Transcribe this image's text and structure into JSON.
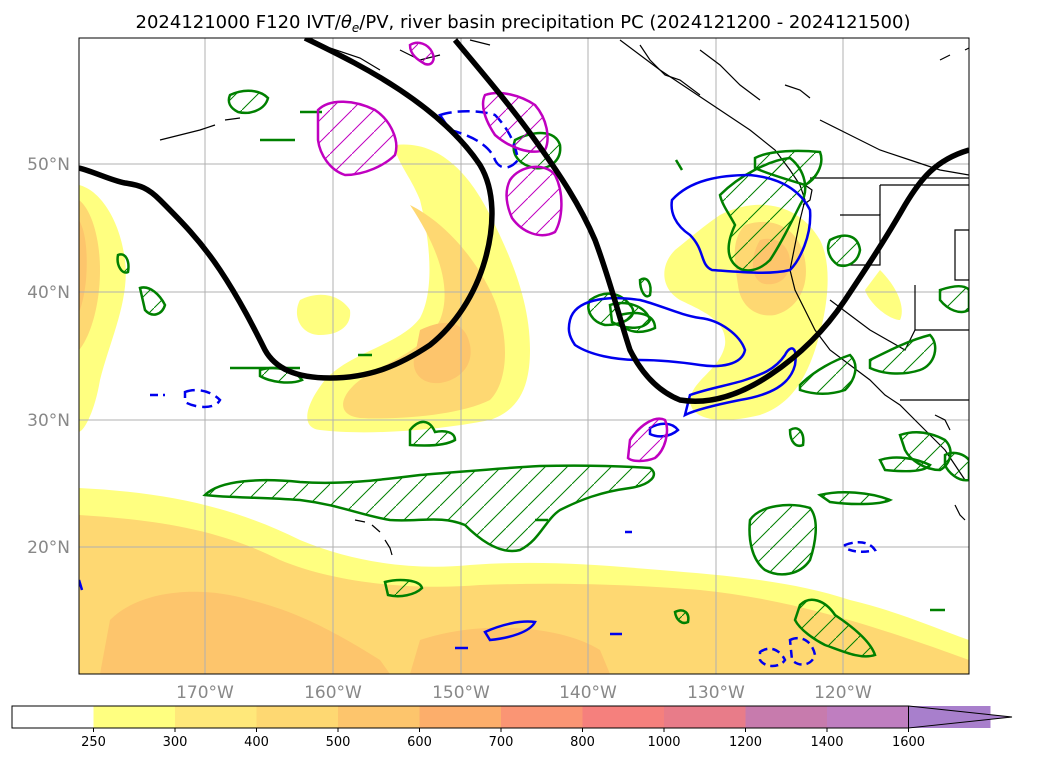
{
  "title": {
    "main": "2024121000 F120 IVT/",
    "theta": "θ",
    "theta_sub": "e",
    "rest": "/PV, river basin precipitation PC (2024121200 - 2024121500)"
  },
  "axes": {
    "lon_labels": [
      "170°W",
      "160°W",
      "150°W",
      "140°W",
      "130°W",
      "120°W"
    ],
    "lat_labels": [
      "50°N",
      "40°N",
      "30°N",
      "20°N"
    ]
  },
  "colorbar": {
    "levels": [
      "250",
      "300",
      "400",
      "500",
      "600",
      "700",
      "800",
      "1000",
      "1200",
      "1400",
      "1600"
    ],
    "colors": [
      "#ffffff",
      "#ffff80",
      "#ffe87a",
      "#fed872",
      "#fdc56c",
      "#fcae6b",
      "#fa9574",
      "#f5807d",
      "#e87c89",
      "#c77bad",
      "#bf7ec0",
      "#a87fcc"
    ]
  },
  "legend_colors": {
    "fill_low": "#ffff80",
    "fill_mid": "#fed872",
    "fill_high": "#fcae6b",
    "pv_contour": "#000000",
    "green_contour": "#008000",
    "blue_contour": "#0000ee",
    "magenta_contour": "#c000c0"
  }
}
